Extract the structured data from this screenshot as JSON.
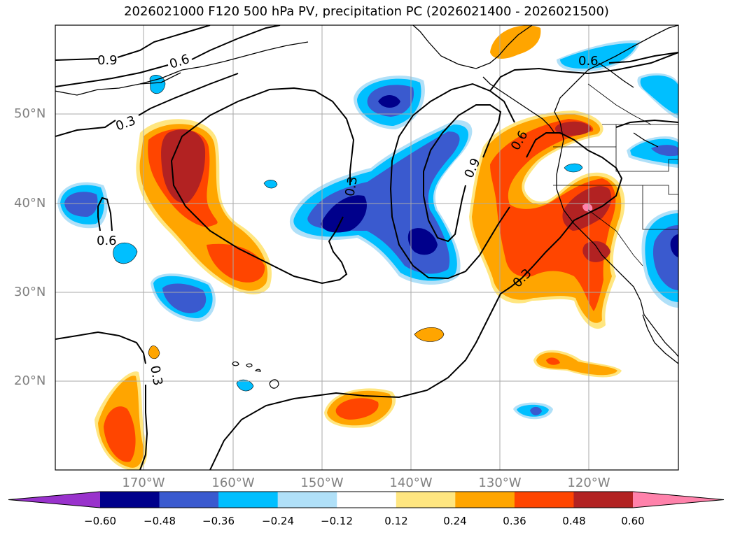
{
  "title": "2026021000 F120 500 hPa PV, precipitation PC (2026021400 - 2026021500)",
  "map": {
    "lat_labels": [
      "50°N",
      "40°N",
      "30°N",
      "20°N"
    ],
    "lon_labels": [
      "170°W",
      "160°W",
      "150°W",
      "140°W",
      "130°W",
      "120°W"
    ],
    "pv_contour_labels": [
      "0.9",
      "0.6",
      "0.3",
      "0.6",
      "0.3",
      "0.9",
      "0.6",
      "0.3",
      "0.3",
      "0.6"
    ],
    "contour_color": "#000000"
  },
  "colorbar": {
    "levels": [
      "−0.60",
      "−0.48",
      "−0.36",
      "−0.24",
      "−0.12",
      "0.12",
      "0.24",
      "0.36",
      "0.48",
      "0.60"
    ],
    "colors": [
      "#9932cc",
      "#00008b",
      "#3a5acf",
      "#00bfff",
      "#b0e0f8",
      "#ffffff",
      "#ffe680",
      "#ffa500",
      "#ff4500",
      "#b22222",
      "#ff82ab"
    ]
  }
}
